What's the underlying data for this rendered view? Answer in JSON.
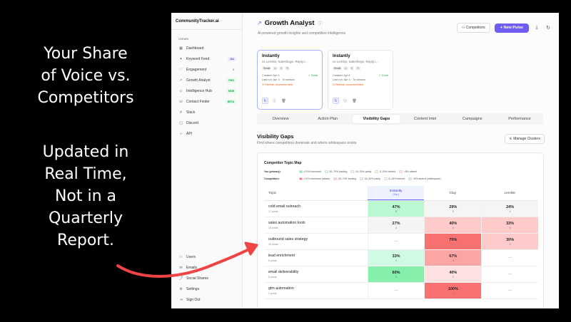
{
  "overlay": {
    "text1": [
      "Your Share",
      "of Voice vs.",
      "Competitors"
    ],
    "text2": [
      "Updated in",
      "Real Time,",
      "Not in a",
      "Quarterly",
      "Report."
    ]
  },
  "sidebar": {
    "brand": "CommunityTracker.ai",
    "section_label": "VIEWS",
    "items": [
      {
        "icon": "grid-icon",
        "glyph": "▦",
        "label": "Dashboard",
        "badge": ""
      },
      {
        "icon": "sparkle-icon",
        "glyph": "✦",
        "label": "Keyword Feed",
        "badge": "264",
        "badge_style": "purple"
      },
      {
        "icon": "heart-icon",
        "glyph": "♡",
        "label": "Engagement",
        "badge": "0",
        "badge_style": "gray"
      },
      {
        "icon": "trend-icon",
        "glyph": "↗",
        "label": "Growth Analyst",
        "badge": "PRO",
        "badge_style": "green"
      },
      {
        "icon": "bulb-icon",
        "glyph": "◇",
        "label": "Intelligence Hub",
        "badge": "NEW",
        "badge_style": "green"
      },
      {
        "icon": "phone-icon",
        "glyph": "☏",
        "label": "Contact Finder",
        "badge": "BETA",
        "badge_style": "green"
      },
      {
        "icon": "hash-icon",
        "glyph": "#",
        "label": "Slack",
        "badge": ""
      },
      {
        "icon": "chat-icon",
        "glyph": "▢",
        "label": "Discord",
        "badge": ""
      },
      {
        "icon": "code-icon",
        "glyph": "‹›",
        "label": "API",
        "badge": ""
      }
    ],
    "bottom_items": [
      {
        "icon": "users-icon",
        "glyph": "⚇",
        "label": "Users"
      },
      {
        "icon": "mail-icon",
        "glyph": "✉",
        "label": "Emails"
      },
      {
        "icon": "share-icon",
        "glyph": "⤴",
        "label": "Social Shares"
      },
      {
        "icon": "gear-icon",
        "glyph": "⚙",
        "label": "Settings"
      },
      {
        "icon": "signout-icon",
        "glyph": "⇥",
        "label": "Sign Out"
      }
    ]
  },
  "header": {
    "title": "Growth Analyst",
    "subtitle": "AI-powered growth insights and competitive intelligence",
    "competitors_label": "Competitors",
    "new_pulse_label": "+ New Pulse"
  },
  "cards": [
    {
      "title": "Instantly",
      "subtitle": "vs Lemlist, Salesforge, Reply.i...",
      "tags": [
        "Reddit",
        "Li",
        "X",
        "Yt"
      ],
      "created": "Created: Apr 4",
      "last_run": "Last run: Apr 4 · 7d window",
      "status": "✓ Done",
      "warning": "⊙ Refresh recommended"
    },
    {
      "title": "Instantly",
      "subtitle": "vs Lemlist, Salesforge, Reply.i...",
      "tags": [
        "Reddit",
        "Li",
        "X",
        "Yt"
      ],
      "created": "Created: Apr 4",
      "last_run": "Last run: Apr 4 · 7d window",
      "status": "✓ Done",
      "warning": "⊙ Refresh recommended"
    }
  ],
  "tabs": [
    "Overview",
    "Action Plan",
    "Visibility Gaps",
    "Content Intel",
    "Campaigns",
    "Performance"
  ],
  "active_tab": 2,
  "section": {
    "title": "Visibility Gaps",
    "subtitle": "Find where competitors dominate and where whitespace exists",
    "manage_label": "Manage Clusters"
  },
  "topic_map": {
    "title": "Competitor Topic Map",
    "legend_you_label": "You (primary):",
    "legend_you": [
      {
        "color": "#86efac",
        "label": "≥70% dominant"
      },
      {
        "color": "#d1fae5",
        "label": "30–70% leading"
      },
      {
        "color": "#f3f4f6",
        "label": "15–30% parity"
      },
      {
        "color": "#fef3c7",
        "label": "5–15% behind"
      },
      {
        "color": "#fee2e2",
        "label": "<5% absent"
      }
    ],
    "legend_comp_label": "Competitors:",
    "legend_comp": [
      {
        "color": "#f87171",
        "label": "≥70% dominant (attack)"
      },
      {
        "color": "#fecaca",
        "label": "30–70% leading"
      },
      {
        "color": "#fde2e2",
        "label": "15–30% parity"
      },
      {
        "color": "#f3f4f6",
        "label": "5–15% behind"
      },
      {
        "color": "#bbf7d0",
        "label": "<5% absent (whitespace)"
      }
    ],
    "columns": [
      {
        "name": "Topic"
      },
      {
        "name": "Instantly",
        "sub": "(You)",
        "primary": true
      },
      {
        "name": "Clay"
      },
      {
        "name": "Lemlist"
      }
    ],
    "rows": [
      {
        "topic": "cold email outreach",
        "posts": "17 posts",
        "cells": [
          {
            "pct": "47%",
            "count": "8",
            "bg": "#bbf7d0"
          },
          {
            "pct": "29%",
            "count": "5",
            "bg": "#f5f5f5"
          },
          {
            "pct": "24%",
            "count": "4",
            "bg": "#f5f5f5"
          }
        ]
      },
      {
        "topic": "sales automation tools",
        "posts": "15 posts",
        "cells": [
          {
            "pct": "27%",
            "count": "4",
            "bg": "#f3f4f6"
          },
          {
            "pct": "40%",
            "count": "6",
            "bg": "#fecaca"
          },
          {
            "pct": "33%",
            "count": "5",
            "bg": "#fecaca"
          }
        ]
      },
      {
        "topic": "outbound sales strategy",
        "posts": "10 posts",
        "cells": [
          {
            "pct": "",
            "count": "",
            "bg": "#ffffff"
          },
          {
            "pct": "70%",
            "count": "7",
            "bg": "#f87171"
          },
          {
            "pct": "30%",
            "count": "3",
            "bg": "#fecaca"
          }
        ]
      },
      {
        "topic": "lead enrichment",
        "posts": "6 posts",
        "cells": [
          {
            "pct": "33%",
            "count": "2",
            "bg": "#d1fae5"
          },
          {
            "pct": "67%",
            "count": "4",
            "bg": "#fca5a5"
          },
          {
            "pct": "",
            "count": "",
            "bg": "#ffffff"
          }
        ]
      },
      {
        "topic": "email deliverability",
        "posts": "5 posts",
        "cells": [
          {
            "pct": "60%",
            "count": "3",
            "bg": "#86efac"
          },
          {
            "pct": "40%",
            "count": "2",
            "bg": "#fee2e2"
          },
          {
            "pct": "",
            "count": "",
            "bg": "#ffffff"
          }
        ]
      },
      {
        "topic": "gtm automation",
        "posts": "2 posts",
        "cells": [
          {
            "pct": "",
            "count": "",
            "bg": "#ffffff"
          },
          {
            "pct": "100%",
            "count": "2",
            "bg": "#f87171"
          },
          {
            "pct": "",
            "count": "",
            "bg": "#ffffff"
          }
        ]
      }
    ]
  },
  "colors": {
    "accent": "#6d5cf6",
    "arrow": "#ef4444"
  }
}
